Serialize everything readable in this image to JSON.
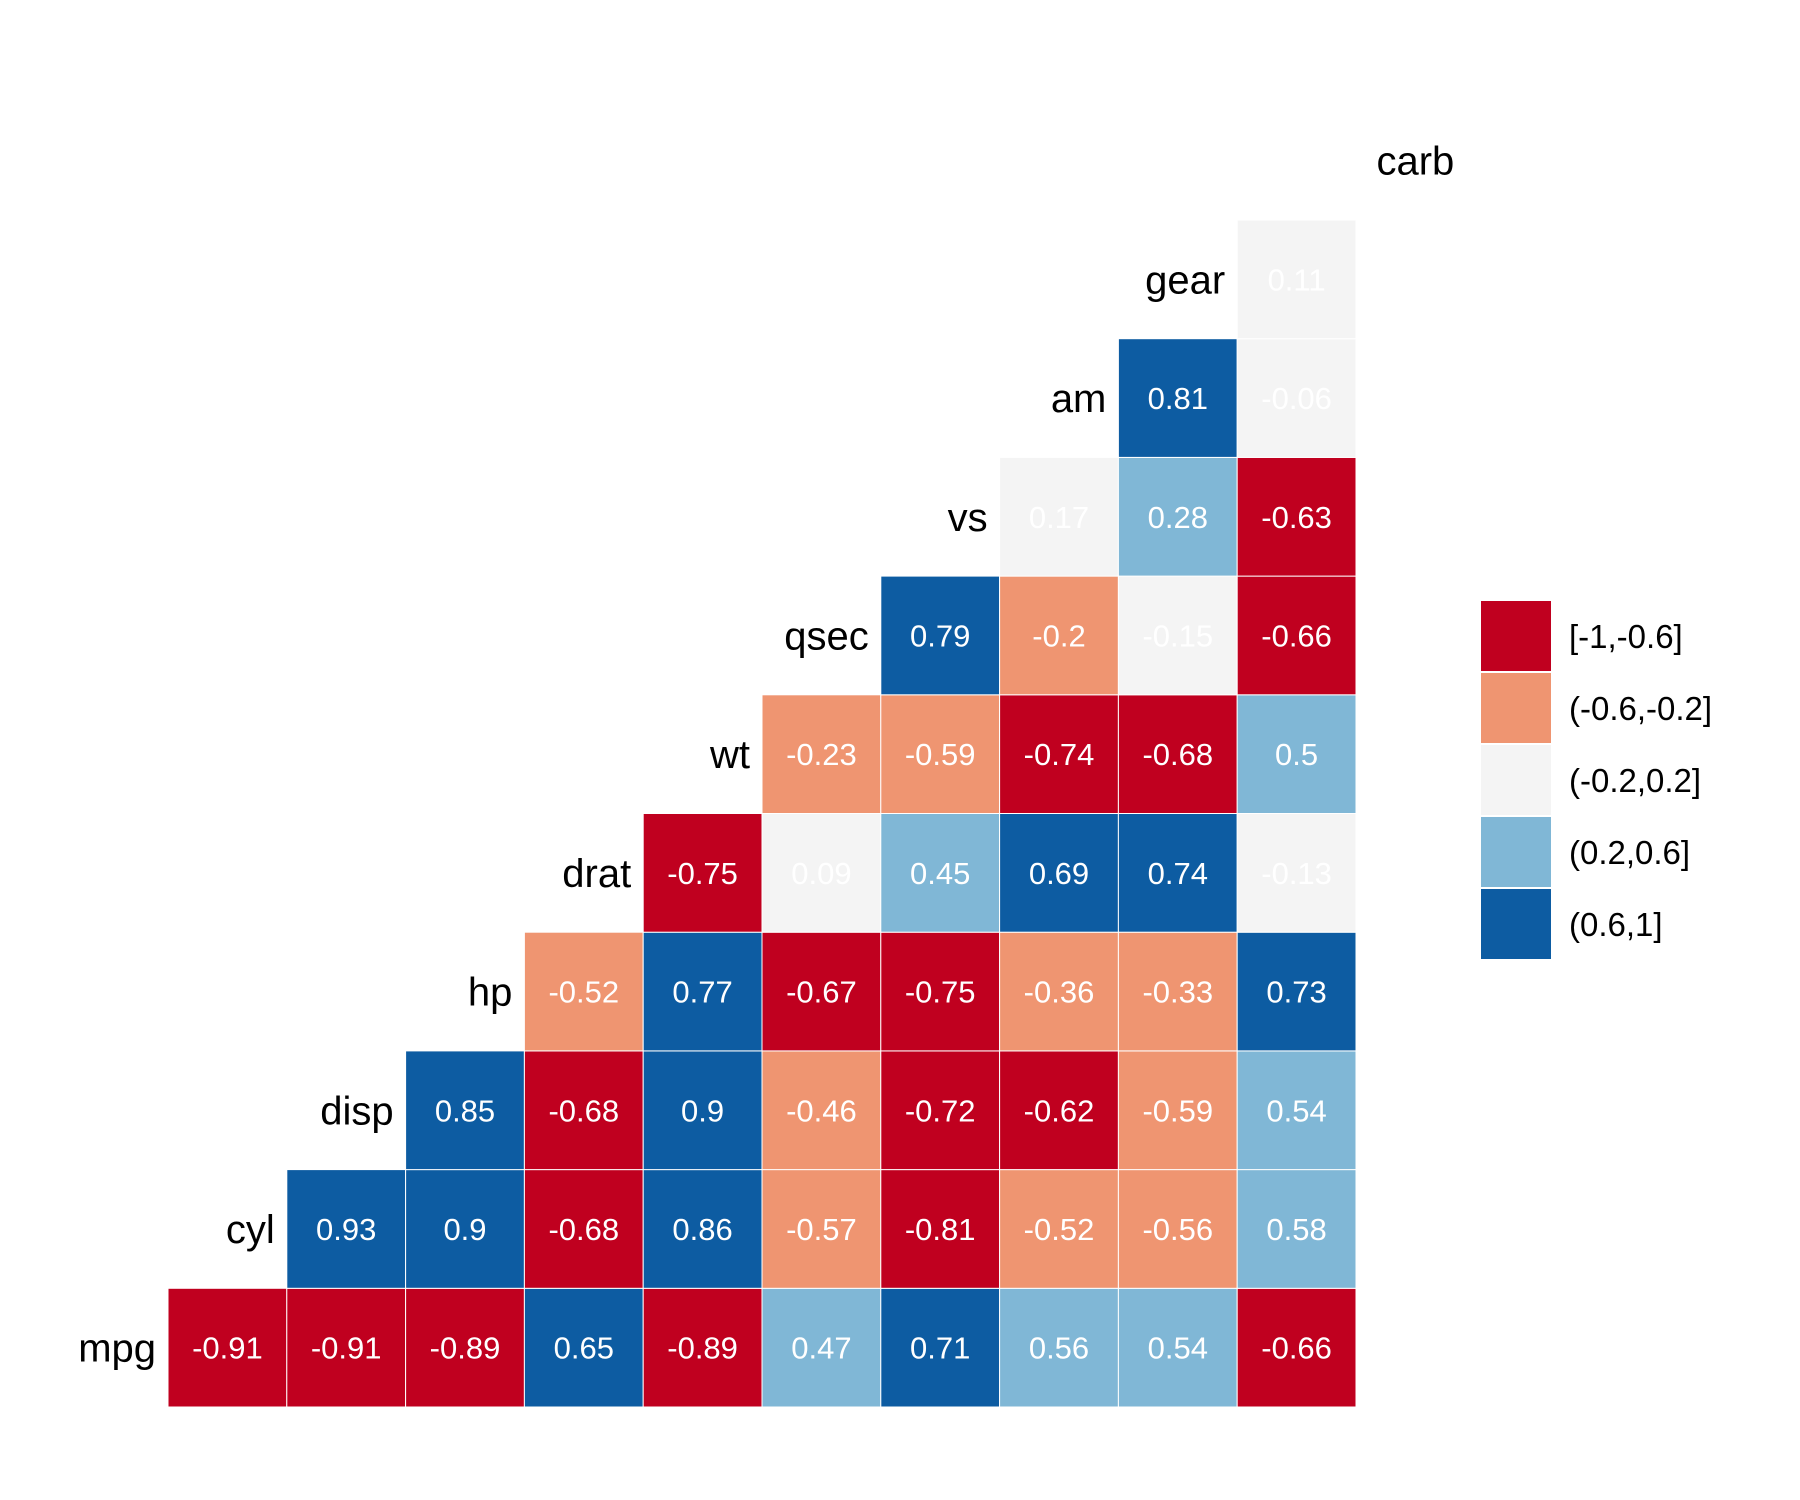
{
  "chart_data": {
    "type": "heatmap",
    "variables": [
      "mpg",
      "cyl",
      "disp",
      "hp",
      "drat",
      "wt",
      "qsec",
      "vs",
      "am",
      "gear",
      "carb"
    ],
    "matrix": [
      [
        null,
        -0.91,
        -0.91,
        -0.89,
        0.65,
        -0.89,
        0.47,
        0.71,
        0.56,
        0.54,
        -0.66
      ],
      [
        null,
        null,
        0.93,
        0.9,
        -0.68,
        0.86,
        -0.57,
        -0.81,
        -0.52,
        -0.56,
        0.58
      ],
      [
        null,
        null,
        null,
        0.85,
        -0.68,
        0.9,
        -0.46,
        -0.72,
        -0.62,
        -0.59,
        0.54
      ],
      [
        null,
        null,
        null,
        null,
        -0.52,
        0.77,
        -0.67,
        -0.75,
        -0.36,
        -0.33,
        0.73
      ],
      [
        null,
        null,
        null,
        null,
        null,
        -0.75,
        0.09,
        0.45,
        0.69,
        0.74,
        -0.13
      ],
      [
        null,
        null,
        null,
        null,
        null,
        null,
        -0.23,
        -0.59,
        -0.74,
        -0.68,
        0.5
      ],
      [
        null,
        null,
        null,
        null,
        null,
        null,
        null,
        0.79,
        -0.2,
        -0.15,
        -0.66
      ],
      [
        null,
        null,
        null,
        null,
        null,
        null,
        null,
        null,
        0.17,
        0.28,
        -0.63
      ],
      [
        null,
        null,
        null,
        null,
        null,
        null,
        null,
        null,
        null,
        0.81,
        -0.06
      ],
      [
        null,
        null,
        null,
        null,
        null,
        null,
        null,
        null,
        null,
        null,
        0.11
      ],
      [
        null,
        null,
        null,
        null,
        null,
        null,
        null,
        null,
        null,
        null,
        null
      ]
    ],
    "legend": {
      "placement": "right",
      "items": [
        {
          "label": "[-1,-0.6]",
          "color": "#c0001f",
          "min": -1,
          "max": -0.6
        },
        {
          "label": "(-0.6,-0.2]",
          "color": "#ef9571",
          "min": -0.6,
          "max": -0.2
        },
        {
          "label": "(-0.2,0.2]",
          "color": "#f4f4f4",
          "min": -0.2,
          "max": 0.2
        },
        {
          "label": "(0.2,0.6]",
          "color": "#80b7d6",
          "min": 0.2,
          "max": 0.6
        },
        {
          "label": "(0.6,1]",
          "color": "#0d5ca2",
          "min": 0.6,
          "max": 1
        }
      ]
    }
  }
}
